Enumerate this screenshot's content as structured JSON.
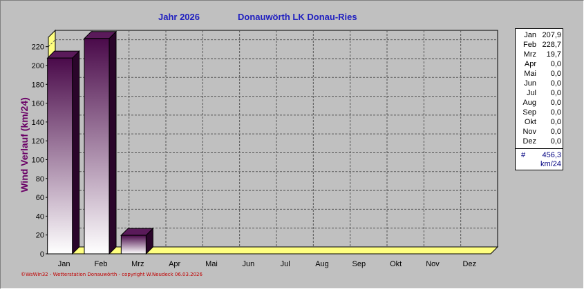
{
  "header": {
    "year_label": "Jahr  2026",
    "station": "Donauwörth LK Donau-Ries"
  },
  "copyright": "©WsWin32  -  Wetterstation Donauwörth  -  copyright W.Neudeck  06.03.2026",
  "colors": {
    "background": "#c0c0c0",
    "bar_dark": "#4a0a4a",
    "bar_light": "#ffffff",
    "floor": "#ffff80",
    "title": "#2020c0",
    "ylabel": "#6a0066"
  },
  "chart_data": {
    "type": "bar",
    "style": "3d",
    "title": "",
    "xlabel": "",
    "ylabel": "Wind Verlauf  (km/24)",
    "categories": [
      "Jan",
      "Feb",
      "Mrz",
      "Apr",
      "Mai",
      "Jun",
      "Jul",
      "Aug",
      "Sep",
      "Okt",
      "Nov",
      "Dez"
    ],
    "values": [
      207.9,
      228.7,
      19.7,
      0.0,
      0.0,
      0.0,
      0.0,
      0.0,
      0.0,
      0.0,
      0.0,
      0.0
    ],
    "ylim": [
      0,
      230
    ],
    "yticks": [
      0,
      20,
      40,
      60,
      80,
      100,
      120,
      140,
      160,
      180,
      200,
      220
    ],
    "grid": true,
    "legend": "none"
  },
  "summary": {
    "rows": [
      {
        "month": "Jan",
        "value": "207,9"
      },
      {
        "month": "Feb",
        "value": "228,7"
      },
      {
        "month": "Mrz",
        "value": "19,7"
      },
      {
        "month": "Apr",
        "value": "0,0"
      },
      {
        "month": "Mai",
        "value": "0,0"
      },
      {
        "month": "Jun",
        "value": "0,0"
      },
      {
        "month": "Jul",
        "value": "0,0"
      },
      {
        "month": "Aug",
        "value": "0,0"
      },
      {
        "month": "Sep",
        "value": "0,0"
      },
      {
        "month": "Okt",
        "value": "0,0"
      },
      {
        "month": "Nov",
        "value": "0,0"
      },
      {
        "month": "Dez",
        "value": "0,0"
      }
    ],
    "hash": "#",
    "total": "456,3",
    "unit": "km/24"
  }
}
